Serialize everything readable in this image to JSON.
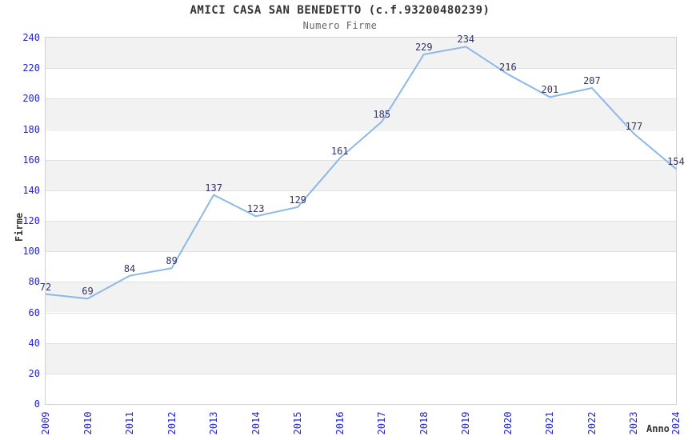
{
  "chart_data": {
    "type": "line",
    "title": "AMICI CASA SAN BENEDETTO (c.f.93200480239)",
    "subtitle": "Numero Firme",
    "xlabel": "Anno",
    "ylabel": "Firme",
    "categories": [
      "2009",
      "2010",
      "2011",
      "2012",
      "2013",
      "2014",
      "2015",
      "2016",
      "2017",
      "2018",
      "2019",
      "2020",
      "2021",
      "2022",
      "2023",
      "2024"
    ],
    "series": [
      {
        "name": "Numero Firme",
        "values": [
          72,
          69,
          84,
          89,
          137,
          123,
          129,
          161,
          185,
          229,
          234,
          216,
          201,
          207,
          177,
          154
        ]
      }
    ],
    "ylim": [
      0,
      240
    ],
    "yticks": [
      0,
      20,
      40,
      60,
      80,
      100,
      120,
      140,
      160,
      180,
      200,
      220,
      240
    ],
    "grid": "horizontal-bands",
    "legend": "none",
    "data_labels": true,
    "colors": {
      "line": "#8CB8E8",
      "data_label": "#333366",
      "tick_label": "#2323CC",
      "band": "#F2F2F2",
      "gridline": "#E0E0E0",
      "plot_border": "#D0D0D0",
      "title": "#333333",
      "subtitle": "#666666"
    }
  }
}
